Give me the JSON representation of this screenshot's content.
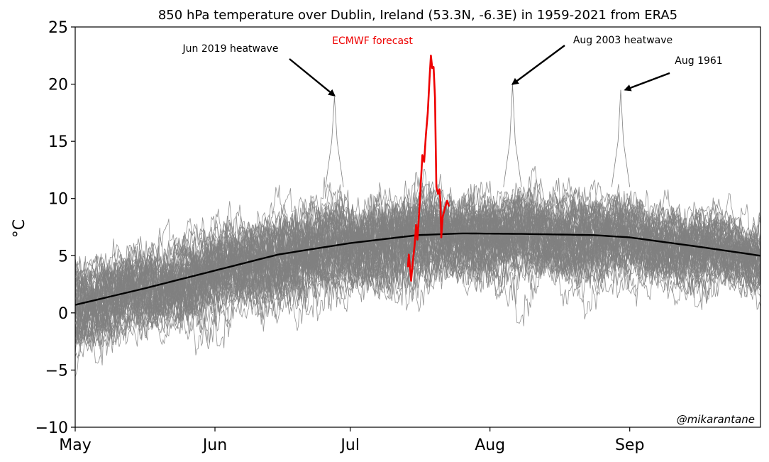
{
  "chart_data": {
    "type": "line",
    "title": "850 hPa temperature over Dublin, Ireland (53.3N, -6.3E) in 1959-2021 from ERA5",
    "ylabel": "°C",
    "xlabel": "",
    "ylim": [
      -10,
      25
    ],
    "yticks": [
      -10,
      -5,
      0,
      5,
      10,
      15,
      20,
      25
    ],
    "ytick_labels": [
      "−10",
      "−5",
      "0",
      "5",
      "10",
      "15",
      "20",
      "25"
    ],
    "xlim": [
      "May 1",
      "Sep 30"
    ],
    "x_ticks": [
      {
        "label": "May",
        "day": 0
      },
      {
        "label": "Jun",
        "day": 31
      },
      {
        "label": "Jul",
        "day": 61
      },
      {
        "label": "Aug",
        "day": 92
      },
      {
        "label": "Sep",
        "day": 123
      }
    ],
    "grid": false,
    "series": [
      {
        "kind": "yearly-traces",
        "years": "1959-2021",
        "color": "#808080",
        "typical_range_c": [
          -7,
          17
        ]
      },
      {
        "kind": "climatology",
        "color": "#000000",
        "points": [
          {
            "day": 0,
            "value": 0.7
          },
          {
            "day": 15,
            "value": 2.1
          },
          {
            "day": 31,
            "value": 3.7
          },
          {
            "day": 45,
            "value": 5.1
          },
          {
            "day": 61,
            "value": 6.1
          },
          {
            "day": 76,
            "value": 6.8
          },
          {
            "day": 86,
            "value": 6.95
          },
          {
            "day": 100,
            "value": 6.9
          },
          {
            "day": 115,
            "value": 6.8
          },
          {
            "day": 123,
            "value": 6.6
          },
          {
            "day": 138,
            "value": 5.8
          },
          {
            "day": 152,
            "value": 5.0
          }
        ]
      },
      {
        "name": "ECMWF forecast",
        "color": "#ee0000",
        "points": [
          {
            "day": 73.8,
            "value": 4.0
          },
          {
            "day": 74.0,
            "value": 5.1
          },
          {
            "day": 74.2,
            "value": 4.2
          },
          {
            "day": 74.5,
            "value": 2.8
          },
          {
            "day": 74.9,
            "value": 4.5
          },
          {
            "day": 75.3,
            "value": 6.0
          },
          {
            "day": 75.6,
            "value": 7.7
          },
          {
            "day": 75.9,
            "value": 6.4
          },
          {
            "day": 76.4,
            "value": 9.5
          },
          {
            "day": 77.0,
            "value": 13.8
          },
          {
            "day": 77.4,
            "value": 13.2
          },
          {
            "day": 77.8,
            "value": 15.6
          },
          {
            "day": 78.2,
            "value": 17.5
          },
          {
            "day": 78.6,
            "value": 20.5
          },
          {
            "day": 78.9,
            "value": 22.5
          },
          {
            "day": 79.2,
            "value": 21.4
          },
          {
            "day": 79.5,
            "value": 21.5
          },
          {
            "day": 79.8,
            "value": 18.8
          },
          {
            "day": 80.1,
            "value": 11.0
          },
          {
            "day": 80.5,
            "value": 10.4
          },
          {
            "day": 80.8,
            "value": 10.8
          },
          {
            "day": 81.0,
            "value": 9.8
          },
          {
            "day": 81.2,
            "value": 6.6
          },
          {
            "day": 81.5,
            "value": 8.4
          },
          {
            "day": 82.1,
            "value": 9.3
          },
          {
            "day": 82.5,
            "value": 9.8
          },
          {
            "day": 82.9,
            "value": 9.3
          }
        ]
      }
    ],
    "annotations": [
      {
        "text": "Jun 2019 heatwave",
        "arrow_to": {
          "day": 57.5,
          "value": 19.0
        }
      },
      {
        "text": "Aug 2003 heatwave",
        "arrow_to": {
          "day": 97,
          "value": 20.0
        }
      },
      {
        "text": "Aug 1961",
        "arrow_to": {
          "day": 122,
          "value": 19.5
        }
      },
      {
        "text": "ECMWF forecast",
        "color": "#ee0000"
      }
    ],
    "credit": "@mikarantane"
  }
}
